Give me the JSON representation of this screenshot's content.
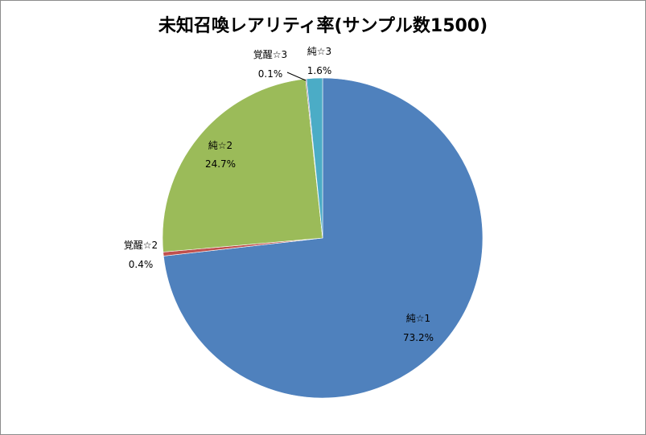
{
  "chart_data": {
    "type": "pie",
    "title": "未知召喚レアリティ率(サンプル数1500)",
    "slices": [
      {
        "name": "純☆1",
        "value": 73.2,
        "label": "73.2%",
        "color": "#4f81bd"
      },
      {
        "name": "覚醒☆2",
        "value": 0.4,
        "label": "0.4%",
        "color": "#c0504d"
      },
      {
        "name": "純☆2",
        "value": 24.7,
        "label": "24.7%",
        "color": "#9bbb59"
      },
      {
        "name": "覚醒☆3",
        "value": 0.1,
        "label": "0.1%",
        "color": "#8064a2"
      },
      {
        "name": "純☆3",
        "value": 1.6,
        "label": "1.6%",
        "color": "#4bacc6"
      }
    ],
    "start_angle": "12 o'clock",
    "direction": "clockwise",
    "legend": "none"
  }
}
